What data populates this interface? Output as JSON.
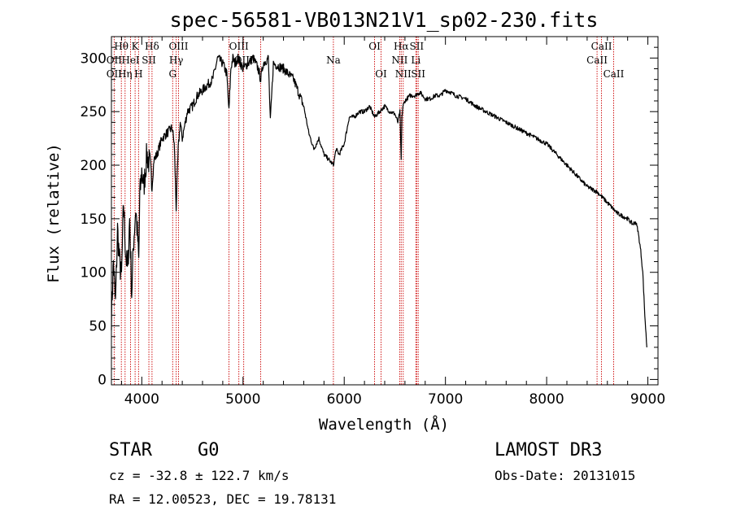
{
  "chart_data": {
    "type": "line",
    "title": "spec-56581-VB013N21V1_sp02-230.fits",
    "xlabel": "Wavelength (Å)",
    "ylabel": "Flux (relative)",
    "xlim": [
      3700,
      9100
    ],
    "ylim": [
      -5,
      320
    ],
    "xticks": [
      4000,
      5000,
      6000,
      7000,
      8000,
      9000
    ],
    "yticks": [
      0,
      50,
      100,
      150,
      200,
      250,
      300
    ],
    "series": [
      {
        "name": "flux",
        "x": [
          3700,
          3720,
          3740,
          3760,
          3780,
          3800,
          3820,
          3840,
          3860,
          3880,
          3900,
          3920,
          3940,
          3960,
          3970,
          3980,
          4000,
          4020,
          4050,
          4080,
          4101,
          4120,
          4150,
          4200,
          4250,
          4300,
          4320,
          4340,
          4360,
          4380,
          4400,
          4450,
          4500,
          4550,
          4600,
          4650,
          4700,
          4750,
          4800,
          4840,
          4861,
          4880,
          4900,
          4920,
          4950,
          5000,
          5050,
          5100,
          5150,
          5175,
          5200,
          5250,
          5270,
          5300,
          5400,
          5500,
          5600,
          5650,
          5700,
          5750,
          5800,
          5850,
          5893,
          5920,
          5950,
          6000,
          6050,
          6100,
          6150,
          6200,
          6250,
          6300,
          6350,
          6400,
          6450,
          6500,
          6530,
          6550,
          6563,
          6570,
          6580,
          6600,
          6650,
          6700,
          6750,
          6800,
          6850,
          6900,
          6950,
          7000,
          7050,
          7100,
          7200,
          7300,
          7400,
          7500,
          7600,
          7700,
          7800,
          7900,
          8000,
          8100,
          8200,
          8300,
          8400,
          8500,
          8600,
          8700,
          8800,
          8850,
          8880,
          8900,
          8930,
          8950,
          8970,
          8990
        ],
        "y": [
          60,
          110,
          70,
          140,
          110,
          95,
          165,
          120,
          100,
          150,
          80,
          130,
          160,
          130,
          110,
          170,
          195,
          180,
          210,
          200,
          180,
          205,
          210,
          225,
          230,
          235,
          220,
          160,
          215,
          240,
          225,
          250,
          255,
          265,
          270,
          275,
          280,
          300,
          295,
          285,
          250,
          290,
          300,
          295,
          300,
          290,
          295,
          300,
          290,
          280,
          295,
          300,
          240,
          295,
          290,
          280,
          255,
          230,
          215,
          225,
          210,
          205,
          200,
          215,
          210,
          220,
          245,
          245,
          250,
          250,
          255,
          245,
          250,
          255,
          250,
          248,
          240,
          250,
          205,
          245,
          255,
          260,
          265,
          265,
          268,
          262,
          262,
          265,
          265,
          270,
          268,
          265,
          262,
          255,
          250,
          245,
          240,
          235,
          230,
          225,
          220,
          210,
          200,
          190,
          180,
          175,
          165,
          155,
          150,
          145,
          147,
          140,
          120,
          100,
          60,
          30
        ]
      }
    ],
    "line_markers": [
      {
        "label": "Hθ",
        "wavelength": 3798,
        "row": 1
      },
      {
        "label": "K",
        "wavelength": 3934,
        "row": 1
      },
      {
        "label": "Hδ",
        "wavelength": 4101,
        "row": 1
      },
      {
        "label": "OIII",
        "wavelength": 4363,
        "row": 1
      },
      {
        "label": "OIII",
        "wavelength": 4959,
        "row": 1
      },
      {
        "label": "Na",
        "wavelength": 5893,
        "row": 2
      },
      {
        "label": "OI",
        "wavelength": 6300,
        "row": 1
      },
      {
        "label": "Hα",
        "wavelength": 6563,
        "row": 1
      },
      {
        "label": "SII",
        "wavelength": 6716,
        "row": 1
      },
      {
        "label": "CaII",
        "wavelength": 8542,
        "row": 1
      },
      {
        "label": "OII",
        "wavelength": 3727,
        "row": 2
      },
      {
        "label": "HeI",
        "wavelength": 3889,
        "row": 2
      },
      {
        "label": "SII",
        "wavelength": 4070,
        "row": 2
      },
      {
        "label": "Hγ",
        "wavelength": 4340,
        "row": 2
      },
      {
        "label": "OIII",
        "wavelength": 5007,
        "row": 2
      },
      {
        "label": "NII",
        "wavelength": 6548,
        "row": 2
      },
      {
        "label": "Li",
        "wavelength": 6708,
        "row": 2
      },
      {
        "label": "CaII",
        "wavelength": 8498,
        "row": 2
      },
      {
        "label": "OII",
        "wavelength": 3727,
        "row": 3
      },
      {
        "label": "Hη",
        "wavelength": 3835,
        "row": 3
      },
      {
        "label": "H",
        "wavelength": 3968,
        "row": 3
      },
      {
        "label": "G",
        "wavelength": 4305,
        "row": 3
      },
      {
        "label": "OI",
        "wavelength": 6364,
        "row": 3
      },
      {
        "label": "NII",
        "wavelength": 6583,
        "row": 3
      },
      {
        "label": "SII",
        "wavelength": 6731,
        "row": 3
      },
      {
        "label": "CaII",
        "wavelength": 8662,
        "row": 3
      }
    ],
    "marker_lines": [
      3727,
      3798,
      3835,
      3889,
      3934,
      3968,
      4070,
      4101,
      4305,
      4340,
      4363,
      4861,
      4959,
      5007,
      5175,
      5893,
      6300,
      6364,
      6548,
      6563,
      6583,
      6708,
      6716,
      6731,
      8498,
      8542,
      8662
    ]
  },
  "info": {
    "object_class": "STAR",
    "subclass": "G0",
    "survey": "LAMOST DR3",
    "redshift": "cz = -32.8 ± 122.7 km/s",
    "obs_date": "Obs-Date: 20131015",
    "coordinates": "RA =  12.00523, DEC =  19.78131"
  },
  "colors": {
    "spectrum": "#000000",
    "marker": "#cc0000",
    "axis": "#000000"
  }
}
